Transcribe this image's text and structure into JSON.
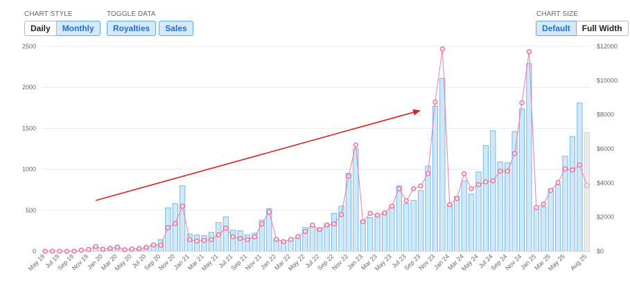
{
  "controls": {
    "chart_style": {
      "label": "CHART STYLE",
      "options": [
        "Daily",
        "Monthly"
      ],
      "selected": "Monthly"
    },
    "toggle_data": {
      "label": "TOGGLE DATA",
      "options": [
        "Royalties",
        "Sales"
      ],
      "selected": [
        "Royalties",
        "Sales"
      ]
    },
    "chart_size": {
      "label": "CHART SIZE",
      "options": [
        "Default",
        "Full Width"
      ],
      "selected": "Default"
    }
  },
  "colors": {
    "bar_fill": "#cfe8fb",
    "bar_stroke": "#5aaee8",
    "bar_last_fill": "#ececec",
    "line": "#f07ca0",
    "marker": "#f06a94",
    "grid": "#ececec",
    "arrow": "#e02020"
  },
  "chart_data": {
    "type": "bar",
    "months": [
      "May 19",
      "Jun 19",
      "Jul 19",
      "Aug 19",
      "Sep 19",
      "Oct 19",
      "Nov 19",
      "Dec 19",
      "Jan 20",
      "Feb 20",
      "Mar 20",
      "Apr 20",
      "May 20",
      "Jun 20",
      "Jul 20",
      "Aug 20",
      "Sep 20",
      "Oct 20",
      "Nov 20",
      "Dec 20",
      "Jan 21",
      "Feb 21",
      "Mar 21",
      "Apr 21",
      "May 21",
      "Jun 21",
      "Jul 21",
      "Aug 21",
      "Sep 21",
      "Oct 21",
      "Nov 21",
      "Dec 21",
      "Jan 22",
      "Feb 22",
      "Mar 22",
      "Apr 22",
      "May 22",
      "Jun 22",
      "Jul 22",
      "Aug 22",
      "Sep 22",
      "Oct 22",
      "Nov 22",
      "Dec 22",
      "Jan 23",
      "Feb 23",
      "Mar 23",
      "Apr 23",
      "May 23",
      "Jun 23",
      "Jul 23",
      "Aug 23",
      "Sep 23",
      "Oct 23",
      "Nov 23",
      "Dec 23",
      "Jan 24",
      "Feb 24",
      "Mar 24",
      "Apr 24",
      "May 24",
      "Jun 24",
      "Jul 24",
      "Aug 24",
      "Sep 24",
      "Oct 24",
      "Nov 24",
      "Dec 24",
      "Jan 25",
      "Feb 25",
      "Mar 25",
      "Apr 25",
      "May 25",
      "Jun 25",
      "Jul 25",
      "Aug 25"
    ],
    "x_tick_labels": [
      "May 19",
      "Jul 19",
      "Sep 19",
      "Nov 19",
      "Jan 20",
      "Mar 20",
      "May 20",
      "Jul 20",
      "Sep 20",
      "Nov 20",
      "Jan 21",
      "Mar 21",
      "May 21",
      "Jul 21",
      "Sep 21",
      "Nov 21",
      "Jan 22",
      "Mar 22",
      "May 22",
      "Jul 22",
      "Sep 22",
      "Nov 22",
      "Jan 23",
      "Mar 23",
      "May 23",
      "Jul 23",
      "Sep 23",
      "Nov 23",
      "Jan 24",
      "Mar 24",
      "May 24",
      "Jul 24",
      "Sep 24",
      "Nov 24",
      "Jan 25",
      "Mar 25",
      "May 25",
      "Aug 25"
    ],
    "series": [
      {
        "name": "Sales",
        "axis": "left",
        "type": "bar",
        "values": [
          0,
          0,
          0,
          0,
          0,
          5,
          10,
          60,
          10,
          30,
          55,
          10,
          20,
          30,
          50,
          90,
          140,
          530,
          580,
          800,
          210,
          200,
          190,
          230,
          350,
          420,
          260,
          250,
          200,
          220,
          380,
          520,
          150,
          130,
          140,
          170,
          290,
          300,
          280,
          330,
          460,
          550,
          950,
          1250,
          380,
          410,
          440,
          480,
          550,
          800,
          580,
          620,
          740,
          1040,
          1770,
          2110,
          570,
          670,
          860,
          700,
          970,
          1290,
          1470,
          1090,
          1080,
          1460,
          1740,
          2290,
          520,
          540,
          760,
          810,
          1160,
          1400,
          1810,
          1450
        ]
      },
      {
        "name": "Royalties",
        "axis": "right",
        "type": "line",
        "values": [
          0,
          0,
          0,
          0,
          0,
          60,
          100,
          280,
          120,
          170,
          240,
          90,
          130,
          160,
          230,
          370,
          350,
          1380,
          1620,
          2640,
          680,
          600,
          640,
          680,
          960,
          1350,
          850,
          750,
          680,
          840,
          1600,
          2300,
          700,
          560,
          690,
          860,
          1160,
          1530,
          1270,
          1540,
          1600,
          2150,
          4390,
          6220,
          1730,
          2220,
          2110,
          2240,
          2640,
          3660,
          2960,
          3660,
          3820,
          4550,
          8740,
          11850,
          2730,
          3090,
          4540,
          3660,
          3900,
          4060,
          4130,
          4690,
          4690,
          5730,
          8690,
          11690,
          2560,
          2760,
          3560,
          4030,
          4830,
          4760,
          5050,
          3850
        ]
      }
    ],
    "y_left": {
      "min": 0,
      "max": 2500,
      "ticks": [
        0,
        500,
        1000,
        1500,
        2000,
        2500
      ],
      "tick_labels": [
        "0",
        "500",
        "1000",
        "1500",
        "2000",
        "2500"
      ]
    },
    "y_right": {
      "min": 0,
      "max": 12000,
      "ticks": [
        0,
        2000,
        4000,
        6000,
        8000,
        10000,
        12000
      ],
      "tick_labels": [
        "$0",
        "$2000",
        "$4000",
        "$6000",
        "$8000",
        "$10000",
        "$12000"
      ]
    },
    "annotations": [
      {
        "type": "trend-arrow",
        "from_month": "Dec 19",
        "from_sales": 620,
        "to_month": "Sep 23",
        "to_sales": 1720
      }
    ],
    "grid": true,
    "legend": "none"
  }
}
